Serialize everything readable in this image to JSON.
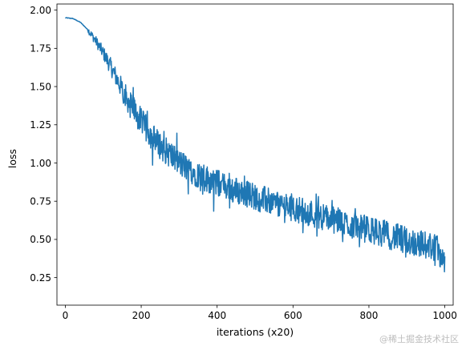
{
  "chart_data": {
    "type": "line",
    "title": "",
    "xlabel": "iterations (x20)",
    "ylabel": "loss",
    "xlim": [
      -22,
      1022
    ],
    "ylim": [
      0.07,
      2.04
    ],
    "xticks": [
      0,
      200,
      400,
      600,
      800,
      1000
    ],
    "yticks": [
      0.25,
      0.5,
      0.75,
      1.0,
      1.25,
      1.5,
      1.75,
      2.0
    ],
    "xtick_labels": [
      "0",
      "200",
      "400",
      "600",
      "800",
      "1000"
    ],
    "ytick_labels": [
      "0.25",
      "0.50",
      "0.75",
      "1.00",
      "1.25",
      "1.50",
      "1.75",
      "2.00"
    ],
    "grid": false,
    "line_color": "#1f77b4",
    "series": [
      {
        "x": [
          0,
          20,
          40,
          60,
          80,
          100,
          120,
          140,
          160,
          180,
          200,
          220,
          240,
          260,
          280,
          300,
          320,
          340,
          360,
          380,
          400,
          420,
          440,
          460,
          480,
          500,
          520,
          540,
          560,
          580,
          600,
          620,
          640,
          660,
          680,
          700,
          720,
          740,
          760,
          780,
          800,
          820,
          840,
          860,
          880,
          900,
          920,
          940,
          960,
          980,
          1000
        ],
        "y": [
          1.95,
          1.945,
          1.92,
          1.87,
          1.8,
          1.72,
          1.63,
          1.53,
          1.43,
          1.35,
          1.27,
          1.2,
          1.14,
          1.09,
          1.05,
          1.0,
          0.97,
          0.94,
          0.91,
          0.89,
          0.87,
          0.85,
          0.83,
          0.81,
          0.8,
          0.78,
          0.76,
          0.75,
          0.73,
          0.72,
          0.71,
          0.69,
          0.68,
          0.66,
          0.65,
          0.63,
          0.62,
          0.6,
          0.59,
          0.58,
          0.56,
          0.55,
          0.54,
          0.52,
          0.51,
          0.49,
          0.48,
          0.47,
          0.46,
          0.44,
          0.36
        ]
      }
    ]
  },
  "watermark": "@稀土掘金技术社区"
}
